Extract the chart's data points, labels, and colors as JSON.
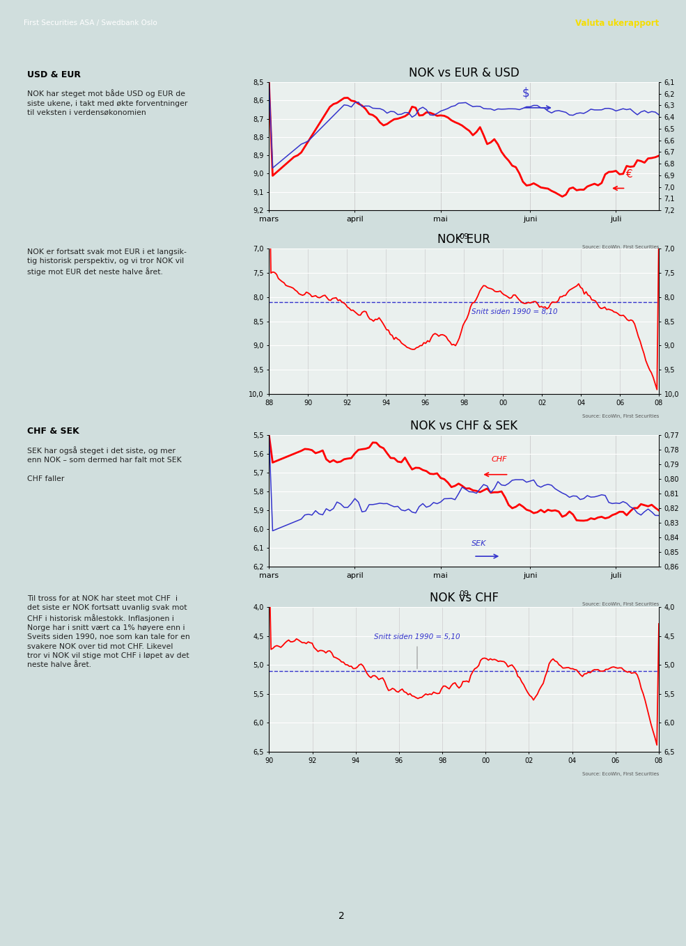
{
  "page_bg": "#d0dedd",
  "header_bg": "#2d7068",
  "header_stripe_bg": "#b8cece",
  "header_text_left": "First Securities ASA / Swedbank Oslo",
  "header_text_right": "Valuta ukerapport",
  "footer_text": "2",
  "left_texts": [
    {
      "title": "USD & EUR",
      "body": "NOK har steget mot både USD og EUR de\nsiste ukene, i takt med økte forventninger\ntil veksten i verdensøkonomien"
    },
    {
      "title": "",
      "body": "NOK er fortsatt svak mot EUR i et langsik-\ntig historisk perspektiv, og vi tror NOK vil\nstige mot EUR det neste halve året."
    },
    {
      "title": "CHF & SEK",
      "body": "SEK har også steget i det siste, og mer\nenn NOK – som dermed har falt mot SEK\n\nCHF faller"
    },
    {
      "title": "",
      "body": "Til tross for at NOK har steet mot CHF  i\ndet siste er NOK fortsatt uvanlig svak mot\nCHF i historisk målestokk. Inflasjonen i\nNorge har i snitt vært ca 1% høyere enn i\nSveits siden 1990, noe som kan tale for en\nsvakere NOK over tid mot CHF. Likevel\ntror vi NOK vil stige mot CHF i løpet av det\nneste halve året."
    }
  ],
  "chart1": {
    "title": "NOK vs EUR & USD",
    "xlabel": "09",
    "xtick_labels": [
      "mars",
      "april",
      "mai",
      "juni",
      "juli"
    ],
    "yleft_min": 8.5,
    "yleft_max": 9.2,
    "yright_min": 6.1,
    "yright_max": 7.2,
    "source": "Source: EcoWin, First Securities"
  },
  "chart2": {
    "title": "NOK EUR",
    "xtick_labels": [
      "88",
      "90",
      "92",
      "94",
      "96",
      "98",
      "00",
      "02",
      "04",
      "06",
      "08"
    ],
    "yleft_min": 7.0,
    "yleft_max": 10.0,
    "yright_min": 7.0,
    "yright_max": 10.0,
    "snitt_label": "Snitt siden 1990 = 8,10",
    "snitt_value": 8.1,
    "source": "Source: EcoWin, First Securities"
  },
  "chart3": {
    "title": "NOK vs CHF & SEK",
    "xlabel": "09",
    "xtick_labels": [
      "mars",
      "april",
      "mai",
      "juni",
      "juli"
    ],
    "yleft_min": 5.5,
    "yleft_max": 6.2,
    "yright_min": 0.77,
    "yright_max": 0.86,
    "source": "Source: EcoWin, First Securities"
  },
  "chart4": {
    "title": "NOK vs CHF",
    "xtick_labels": [
      "90",
      "92",
      "94",
      "96",
      "98",
      "00",
      "02",
      "04",
      "06",
      "08"
    ],
    "yleft_min": 4.0,
    "yleft_max": 6.5,
    "yright_min": 4.0,
    "yright_max": 6.5,
    "snitt_label": "Snitt siden 1990 = 5,10",
    "snitt_value": 5.1,
    "source": "Source: EcoWin, First Securities"
  }
}
